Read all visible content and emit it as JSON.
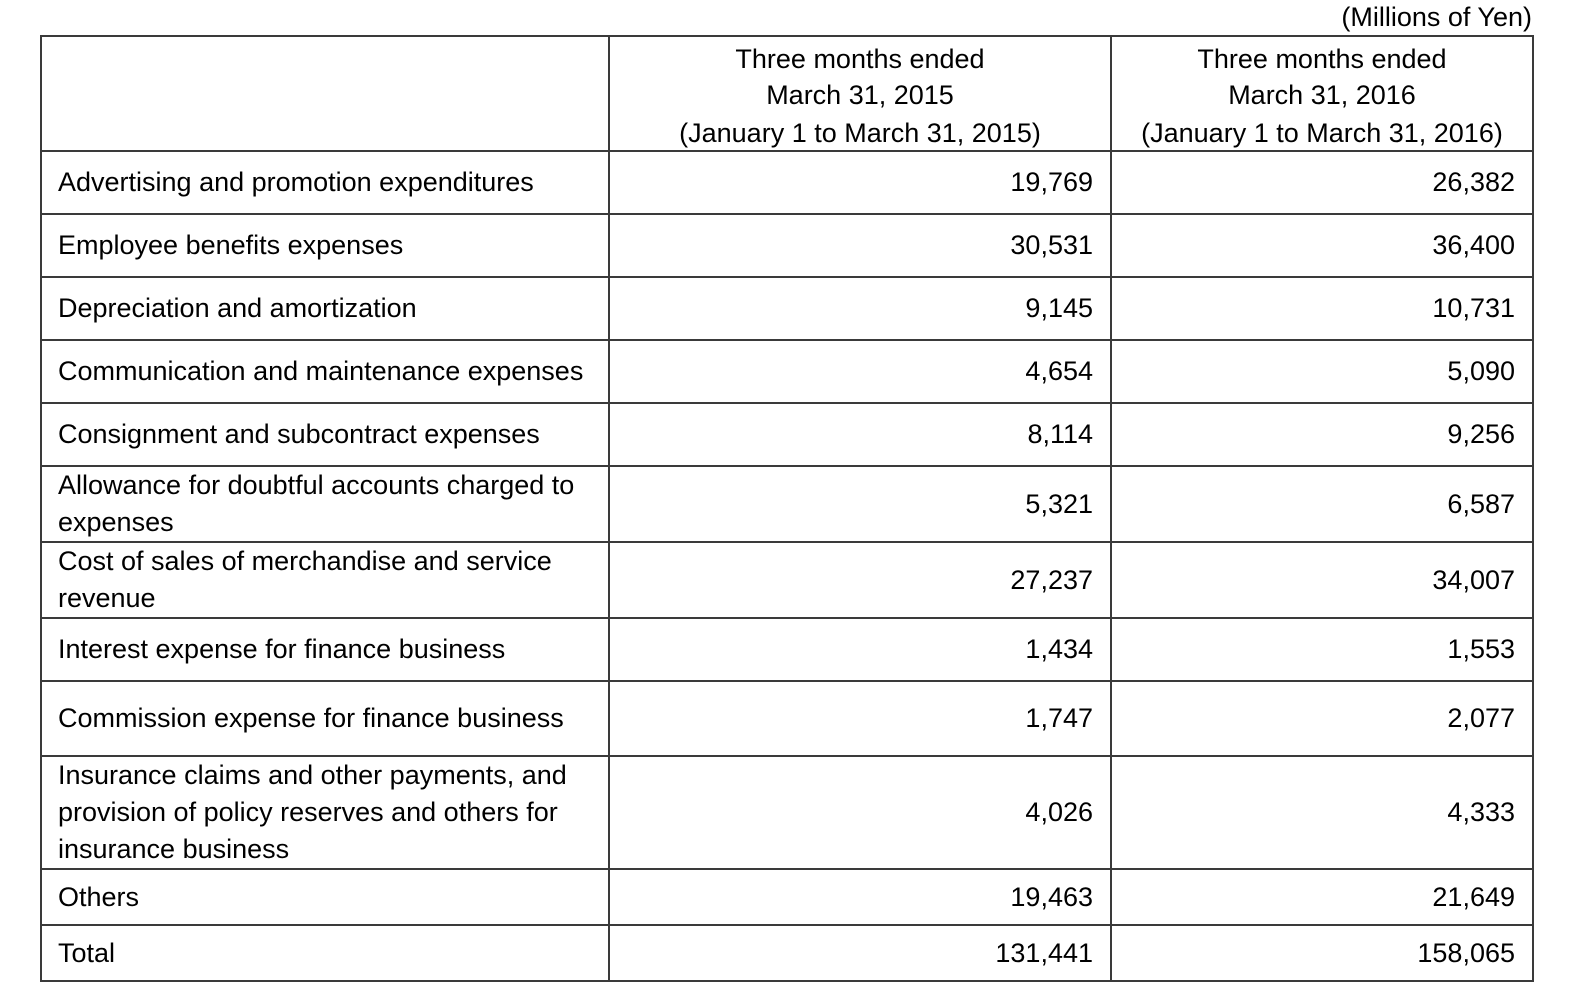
{
  "unit_note": "(Millions of Yen)",
  "table": {
    "header": {
      "periods": [
        {
          "line1": "Three months ended",
          "line2": "March 31, 2015",
          "subtitle": "(January 1 to March 31, 2015)"
        },
        {
          "line1": "Three months ended",
          "line2": "March 31, 2016",
          "subtitle": "(January 1 to March 31, 2016)"
        }
      ]
    },
    "rows": [
      {
        "label": "Advertising and promotion expenditures",
        "fy2015": "19,769",
        "fy2016": "26,382"
      },
      {
        "label": "Employee benefits expenses",
        "fy2015": "30,531",
        "fy2016": "36,400"
      },
      {
        "label": "Depreciation and amortization",
        "fy2015": "9,145",
        "fy2016": "10,731"
      },
      {
        "label": "Communication and maintenance expenses",
        "fy2015": "4,654",
        "fy2016": "5,090"
      },
      {
        "label": "Consignment and subcontract expenses",
        "fy2015": "8,114",
        "fy2016": "9,256"
      },
      {
        "label": "Allowance for doubtful accounts charged to expenses",
        "fy2015": "5,321",
        "fy2016": "6,587"
      },
      {
        "label": "Cost of sales of merchandise and service revenue",
        "fy2015": "27,237",
        "fy2016": "34,007"
      },
      {
        "label": "Interest expense for finance business",
        "fy2015": "1,434",
        "fy2016": "1,553"
      },
      {
        "label": "Commission expense for finance business",
        "fy2015": "1,747",
        "fy2016": "2,077"
      },
      {
        "label": "Insurance claims and other payments, and provision of policy reserves and others for insurance business",
        "fy2015": "4,026",
        "fy2016": "4,333"
      },
      {
        "label": "Others",
        "fy2015": "19,463",
        "fy2016": "21,649"
      },
      {
        "label": "Total",
        "fy2015": "131,441",
        "fy2016": "158,065"
      }
    ]
  }
}
